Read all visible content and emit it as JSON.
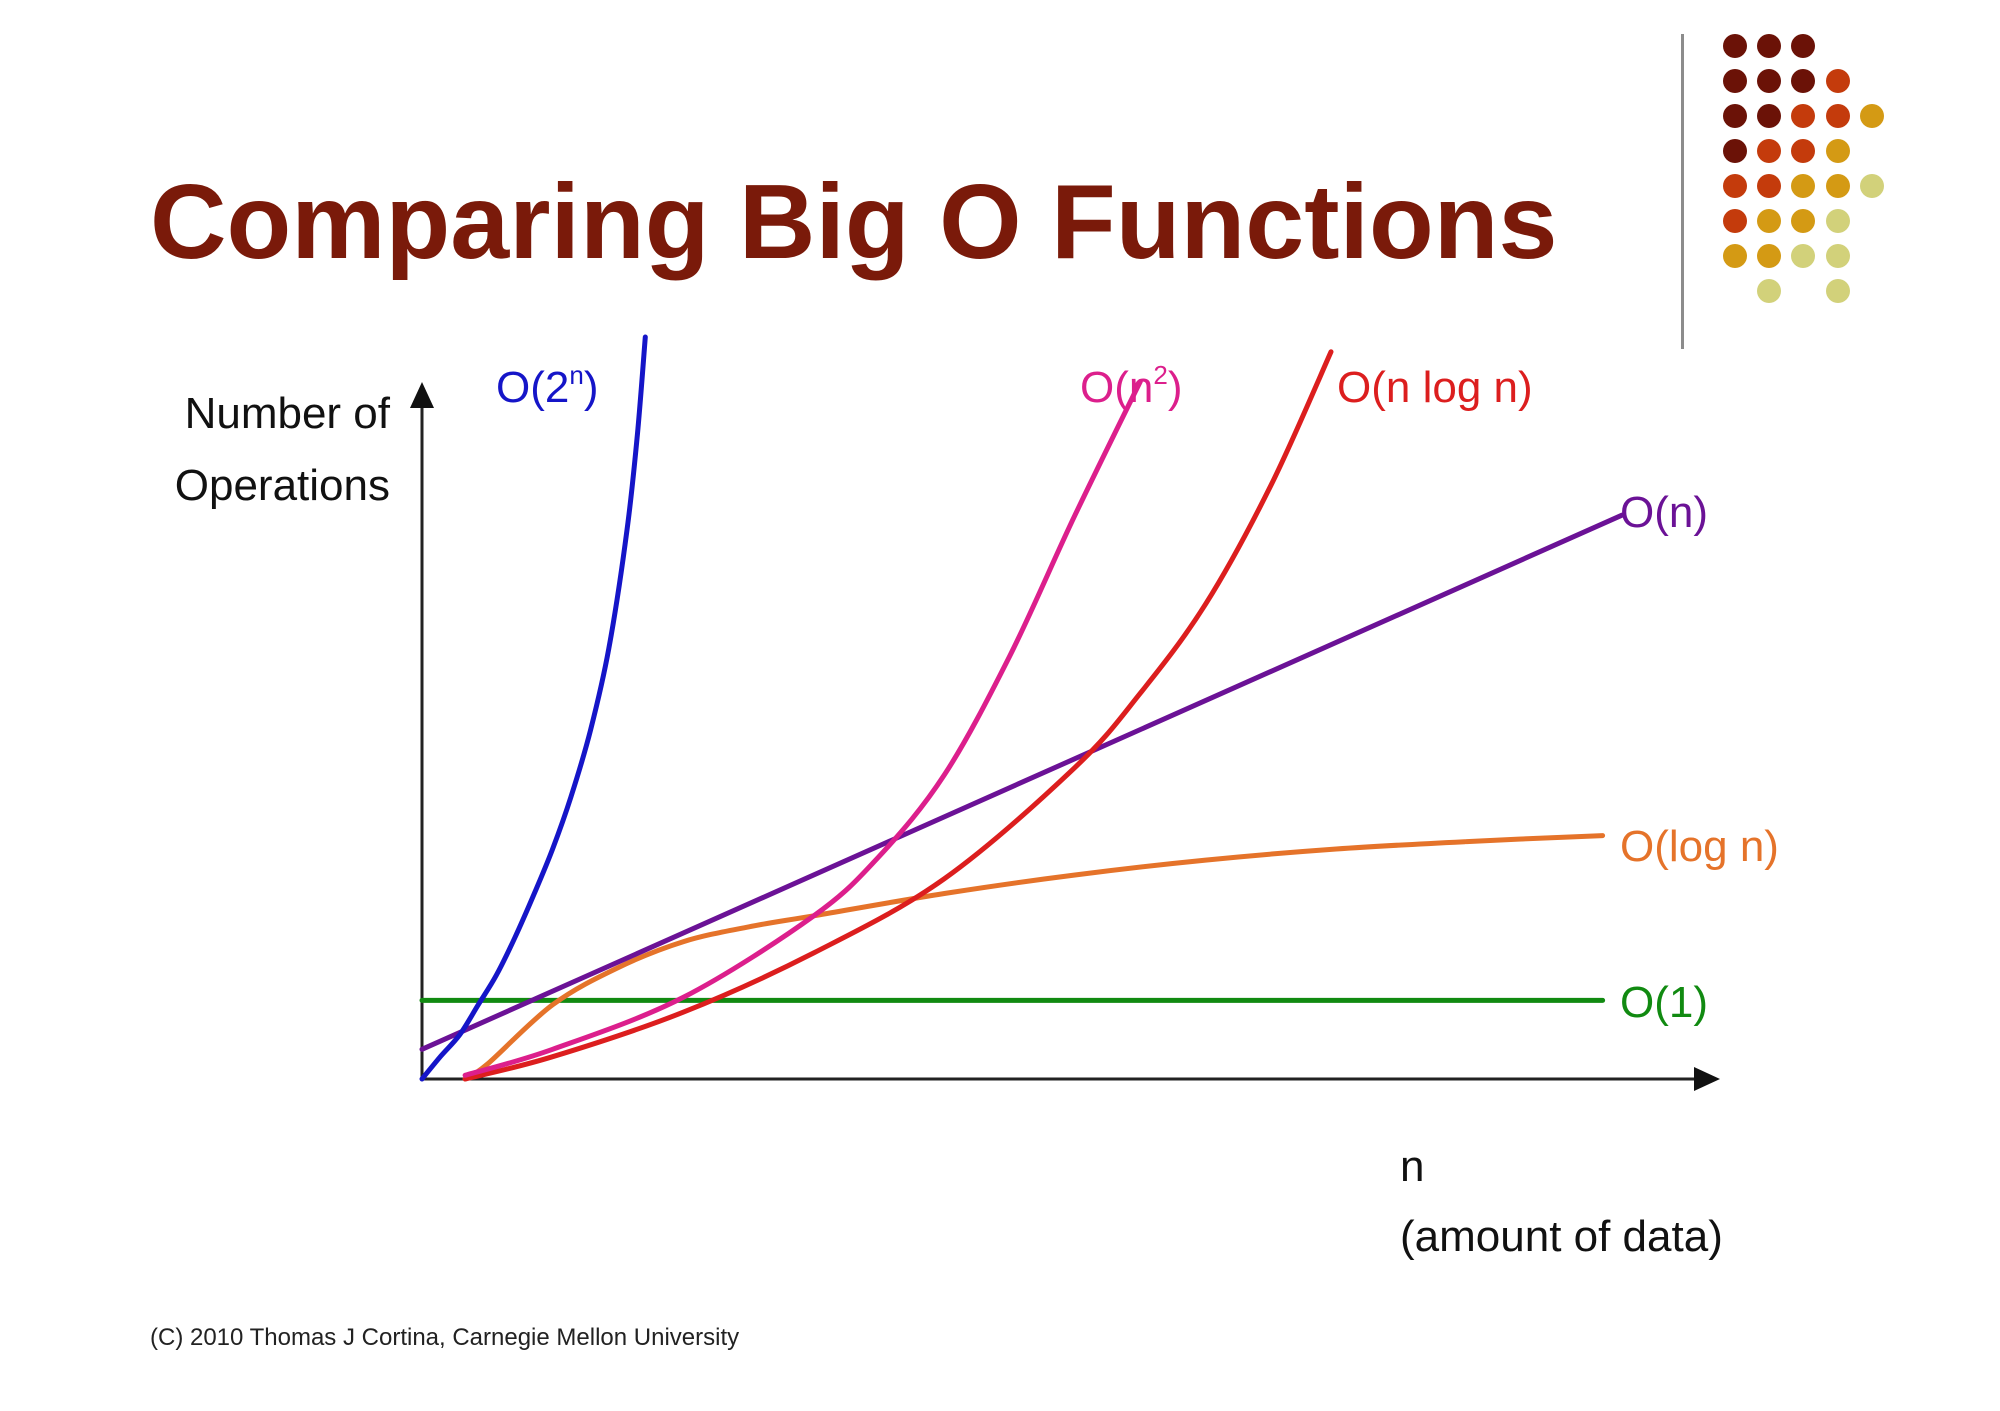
{
  "slide": {
    "title": "Comparing Big O Functions",
    "footer": "(C) 2010 Thomas J Cortina, Carnegie Mellon University",
    "dot_colors": [
      "#6b1207",
      "#c43b0c",
      "#d49a14",
      "#d2d17a"
    ]
  },
  "chart_data": {
    "type": "line",
    "title": "Comparing Big O Functions",
    "ylabel_lines": [
      "Number of",
      "Operations"
    ],
    "xlabel_lines": [
      "n",
      "(amount of data)"
    ],
    "xlim": [
      0,
      100
    ],
    "ylim": [
      0,
      100
    ],
    "grid": false,
    "series": [
      {
        "name": "O(2^n)",
        "label_base": "O(2",
        "label_sup": "n",
        "label_close": ")",
        "color": "#1515c8",
        "x": [
          0,
          1.4,
          2.9,
          4.3,
          5.7,
          7.1,
          8.6,
          10.0,
          11.4,
          12.9,
          14.3,
          15.7,
          16.5,
          17.1
        ],
        "y": [
          0,
          3,
          6,
          10,
          14,
          19,
          25,
          31,
          38,
          47,
          58,
          74,
          87,
          100
        ]
      },
      {
        "name": "O(n^2)",
        "label_base": "O(n",
        "label_sup": "2",
        "label_close": ")",
        "color": "#dc1f8c",
        "x": [
          3.3,
          10,
          20,
          30,
          35,
          40,
          45,
          50,
          55
        ],
        "y": [
          0.5,
          4,
          11,
          22,
          30,
          41,
          57,
          76,
          94
        ]
      },
      {
        "name": "O(n log n)",
        "label": "O(n log n)",
        "color": "#dc1e1e",
        "x": [
          3.3,
          10,
          20,
          30,
          40,
          50,
          55,
          60,
          65,
          69.6
        ],
        "y": [
          0,
          3,
          9,
          17,
          27,
          42,
          52,
          64,
          80,
          98
        ]
      },
      {
        "name": "O(n)",
        "label": "O(n)",
        "color": "#6b1296",
        "x": [
          0,
          91.9
        ],
        "y": [
          4,
          76
        ]
      },
      {
        "name": "O(log n)",
        "label": "O(log n)",
        "color": "#e5732a",
        "x": [
          3.3,
          5,
          10,
          15,
          20,
          25,
          30,
          40,
          50,
          60,
          70,
          80,
          90.4
        ],
        "y": [
          0,
          2,
          10,
          15,
          18.5,
          20.5,
          22,
          25,
          27.5,
          29.5,
          31,
          32,
          32.8
        ]
      },
      {
        "name": "O(1)",
        "label": "O(1)",
        "color": "#118a11",
        "x": [
          0,
          90.4
        ],
        "y": [
          10.6,
          10.6
        ]
      }
    ]
  }
}
